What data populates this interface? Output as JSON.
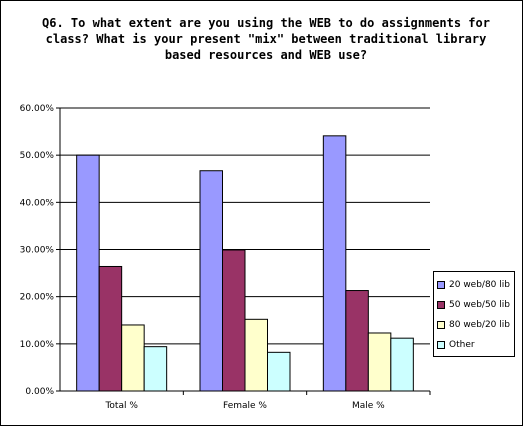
{
  "chart_data": {
    "type": "bar",
    "title": "Q6. To what extent are you using the WEB to do assignments for class? What is your present \"mix\" between traditional library based resources and WEB use?",
    "categories": [
      "Total %",
      "Female %",
      "Male %"
    ],
    "series": [
      {
        "name": "20 web/80 lib",
        "values": [
          0.5,
          0.467,
          0.541
        ],
        "color": "#9999FF"
      },
      {
        "name": "50 web/50 lib",
        "values": [
          0.264,
          0.299,
          0.213
        ],
        "color": "#993366"
      },
      {
        "name": "80 web/20 lib",
        "values": [
          0.14,
          0.152,
          0.123
        ],
        "color": "#FFFFCC"
      },
      {
        "name": "Other",
        "values": [
          0.094,
          0.082,
          0.112
        ],
        "color": "#CCFFFF"
      }
    ],
    "yticks": [
      "0.00%",
      "10.00%",
      "20.00%",
      "30.00%",
      "40.00%",
      "50.00%",
      "60.00%"
    ],
    "ylim": [
      0,
      0.6
    ],
    "grid": true,
    "legend": "right"
  }
}
